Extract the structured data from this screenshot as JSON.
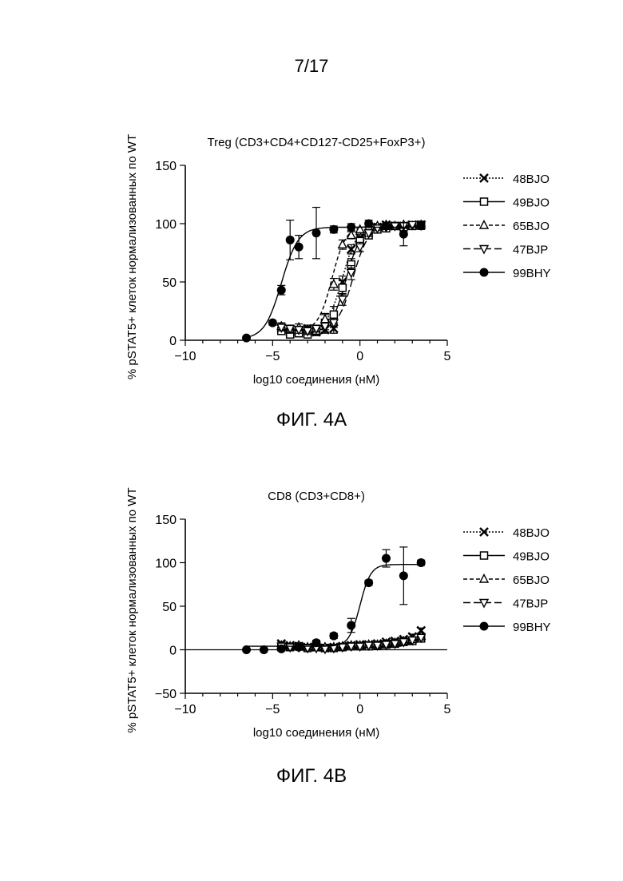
{
  "page": {
    "page_number": "7/17",
    "figure_a_caption": "ФИГ. 4А",
    "figure_b_caption": "ФИГ. 4В"
  },
  "colors": {
    "ink": "#000000",
    "background": "#ffffff"
  },
  "chart_data": [
    {
      "type": "scatter",
      "title": "Treg (CD3+CD4+CD127-CD25+FoxP3+)",
      "xlabel": "log10 соединения (нМ)",
      "ylabel": "% pSTAT5+ клеток нормализованных по WT",
      "xlim": [
        -10,
        5
      ],
      "ylim": [
        0,
        150
      ],
      "xticks": [
        "−10",
        "−5",
        "0",
        "5"
      ],
      "xtick_values": [
        -10,
        -5,
        0,
        5
      ],
      "yticks": [
        "0",
        "50",
        "100",
        "150"
      ],
      "ytick_values": [
        0,
        50,
        100,
        150
      ],
      "grid": false,
      "legend_position": "right",
      "series": [
        {
          "name": "48BJO",
          "marker": "x",
          "line": "dotted",
          "x": [
            -4.5,
            -4.0,
            -3.5,
            -3.0,
            -2.5,
            -2.0,
            -1.5,
            -1.0,
            -0.5,
            0,
            0.5,
            1.0,
            1.5,
            2.0,
            2.5,
            3.0,
            3.5
          ],
          "y": [
            10,
            7,
            8,
            10,
            7,
            9,
            10,
            50,
            78,
            88,
            92,
            97,
            99,
            98,
            98,
            99,
            99
          ],
          "err": [
            4,
            3,
            3,
            3,
            3,
            3,
            4,
            5,
            4,
            3,
            3,
            2,
            2,
            2,
            2,
            2,
            2
          ],
          "fit": {
            "bottom": 8,
            "top": 99,
            "ec50": -1.0,
            "hill": 1.0
          }
        },
        {
          "name": "49BJO",
          "marker": "open-square",
          "line": "solid",
          "x": [
            -4.5,
            -4.0,
            -3.5,
            -3.0,
            -2.5,
            -2.0,
            -1.5,
            -1.0,
            -0.5,
            0,
            0.5,
            1.0,
            1.5,
            2.0,
            2.5,
            3.0,
            3.5
          ],
          "y": [
            8,
            5,
            6,
            5,
            8,
            15,
            22,
            45,
            65,
            85,
            90,
            95,
            96,
            98,
            97,
            98,
            99
          ],
          "err": [
            3,
            3,
            3,
            3,
            4,
            8,
            7,
            6,
            5,
            4,
            3,
            2,
            2,
            2,
            2,
            2,
            2
          ],
          "fit": {
            "bottom": 6,
            "top": 98,
            "ec50": -0.8,
            "hill": 1.0
          }
        },
        {
          "name": "65BJO",
          "marker": "open-triangle-up",
          "line": "dashed",
          "x": [
            -4.5,
            -4.0,
            -3.5,
            -3.0,
            -2.5,
            -2.0,
            -1.5,
            -1.0,
            -0.5,
            0,
            0.5,
            1.0,
            1.5,
            2.0,
            2.5,
            3.0,
            3.5
          ],
          "y": [
            12,
            9,
            11,
            9,
            8,
            18,
            48,
            82,
            90,
            95,
            97,
            98,
            99,
            98,
            99,
            98,
            99
          ],
          "err": [
            3,
            3,
            3,
            3,
            3,
            4,
            5,
            4,
            3,
            2,
            2,
            2,
            2,
            2,
            2,
            2,
            2
          ],
          "fit": {
            "bottom": 8,
            "top": 98,
            "ec50": -1.6,
            "hill": 1.1
          }
        },
        {
          "name": "47BJP",
          "marker": "open-triangle-down",
          "line": "long-dash",
          "x": [
            -4.5,
            -4.0,
            -3.5,
            -3.0,
            -2.5,
            -2.0,
            -1.5,
            -1.0,
            -0.5,
            0,
            0.5,
            1.0,
            1.5,
            2.0,
            2.5,
            3.0,
            3.5
          ],
          "y": [
            11,
            10,
            9,
            8,
            10,
            12,
            15,
            35,
            58,
            80,
            92,
            96,
            97,
            98,
            98,
            99,
            99
          ],
          "err": [
            3,
            3,
            3,
            3,
            3,
            3,
            4,
            5,
            6,
            4,
            3,
            2,
            2,
            2,
            2,
            2,
            2
          ],
          "fit": {
            "bottom": 9,
            "top": 98,
            "ec50": -0.4,
            "hill": 1.0
          }
        },
        {
          "name": "99BHY",
          "marker": "filled-circle",
          "line": "solid",
          "x": [
            -6.5,
            -5.0,
            -4.5,
            -4.0,
            -3.5,
            -2.5,
            -1.5,
            -0.5,
            0.5,
            1.5,
            2.5,
            3.5
          ],
          "y": [
            2,
            15,
            43,
            86,
            80,
            92,
            95,
            97,
            100,
            98,
            91,
            98
          ],
          "err": [
            0,
            2,
            4,
            17,
            10,
            22,
            3,
            3,
            3,
            3,
            10,
            3
          ],
          "fit": {
            "bottom": 1,
            "top": 97,
            "ec50": -4.5,
            "hill": 0.9
          }
        }
      ]
    },
    {
      "type": "scatter",
      "title": "CD8 (CD3+CD8+)",
      "xlabel": "log10 соединения (нМ)",
      "ylabel": "% pSTAT5+ клеток нормализованных по WT",
      "xlim": [
        -10,
        5
      ],
      "ylim": [
        -50,
        150
      ],
      "xticks": [
        "−10",
        "−5",
        "0",
        "5"
      ],
      "xtick_values": [
        -10,
        -5,
        0,
        5
      ],
      "yticks": [
        "−50",
        "0",
        "50",
        "100",
        "150"
      ],
      "ytick_values": [
        -50,
        0,
        50,
        100,
        150
      ],
      "grid": false,
      "legend_position": "right",
      "series": [
        {
          "name": "48BJO",
          "marker": "x",
          "line": "dotted",
          "x": [
            -4.5,
            -4.0,
            -3.5,
            -3.0,
            -2.5,
            -2.0,
            -1.5,
            -1.0,
            -0.5,
            0,
            0.5,
            1.0,
            1.5,
            2.0,
            2.5,
            3.0,
            3.5
          ],
          "y": [
            7,
            5,
            4,
            3,
            3,
            2,
            3,
            4,
            5,
            6,
            6,
            7,
            9,
            10,
            12,
            15,
            22
          ],
          "err": [
            2,
            2,
            2,
            2,
            2,
            2,
            2,
            2,
            2,
            2,
            2,
            2,
            2,
            2,
            2,
            3,
            3
          ],
          "fit": {
            "bottom": 3,
            "top": 25,
            "ec50": 3.5,
            "hill": 0.8
          }
        },
        {
          "name": "49BJO",
          "marker": "open-square",
          "line": "solid",
          "x": [
            -4.5,
            -4.0,
            -3.5,
            -3.0,
            -2.5,
            -2.0,
            -1.5,
            -1.0,
            -0.5,
            0,
            0.5,
            1.0,
            1.5,
            2.0,
            2.5,
            3.0,
            3.5
          ],
          "y": [
            3,
            3,
            4,
            2,
            3,
            2,
            2,
            3,
            4,
            4,
            4,
            5,
            6,
            7,
            9,
            10,
            13
          ],
          "err": [
            2,
            2,
            2,
            2,
            2,
            2,
            2,
            2,
            2,
            2,
            2,
            2,
            2,
            2,
            2,
            3,
            3
          ],
          "fit": {
            "bottom": 3,
            "top": 20,
            "ec50": 3.3,
            "hill": 0.8
          }
        },
        {
          "name": "65BJO",
          "marker": "open-triangle-up",
          "line": "dashed",
          "x": [
            -4.5,
            -4.0,
            -3.5,
            -3.0,
            -2.5,
            -2.0,
            -1.5,
            -1.0,
            -0.5,
            0,
            0.5,
            1.0,
            1.5,
            2.0,
            2.5,
            3.0,
            3.5
          ],
          "y": [
            5,
            4,
            5,
            3,
            4,
            3,
            3,
            4,
            5,
            5,
            6,
            6,
            7,
            8,
            10,
            12,
            16
          ],
          "err": [
            2,
            2,
            2,
            2,
            2,
            2,
            2,
            2,
            2,
            2,
            2,
            2,
            2,
            2,
            2,
            3,
            3
          ],
          "fit": {
            "bottom": 3,
            "top": 22,
            "ec50": 3.4,
            "hill": 0.8
          }
        },
        {
          "name": "47BJP",
          "marker": "open-triangle-down",
          "line": "long-dash",
          "x": [
            -4.5,
            -4.0,
            -3.5,
            -3.0,
            -2.5,
            -2.0,
            -1.5,
            -1.0,
            -0.5,
            0,
            0.5,
            1.0,
            1.5,
            2.0,
            2.5,
            3.0,
            3.5
          ],
          "y": [
            4,
            3,
            3,
            2,
            2,
            1,
            2,
            3,
            4,
            4,
            5,
            5,
            6,
            7,
            9,
            11,
            14
          ],
          "err": [
            2,
            2,
            2,
            2,
            2,
            2,
            2,
            2,
            2,
            2,
            2,
            2,
            2,
            2,
            2,
            3,
            3
          ],
          "fit": {
            "bottom": 2,
            "top": 20,
            "ec50": 3.4,
            "hill": 0.8
          }
        },
        {
          "name": "99BHY",
          "marker": "filled-circle",
          "line": "solid",
          "x": [
            -6.5,
            -5.5,
            -4.5,
            -3.5,
            -2.5,
            -1.5,
            -0.5,
            0.5,
            1.5,
            2.5,
            3.5
          ],
          "y": [
            0,
            0,
            1,
            3,
            8,
            16,
            28,
            77,
            105,
            85,
            100
          ],
          "err": [
            0,
            0,
            0,
            2,
            3,
            3,
            8,
            3,
            10,
            33,
            3
          ],
          "fit": {
            "bottom": 4,
            "top": 98,
            "ec50": 0.0,
            "hill": 1.4
          }
        }
      ]
    }
  ]
}
